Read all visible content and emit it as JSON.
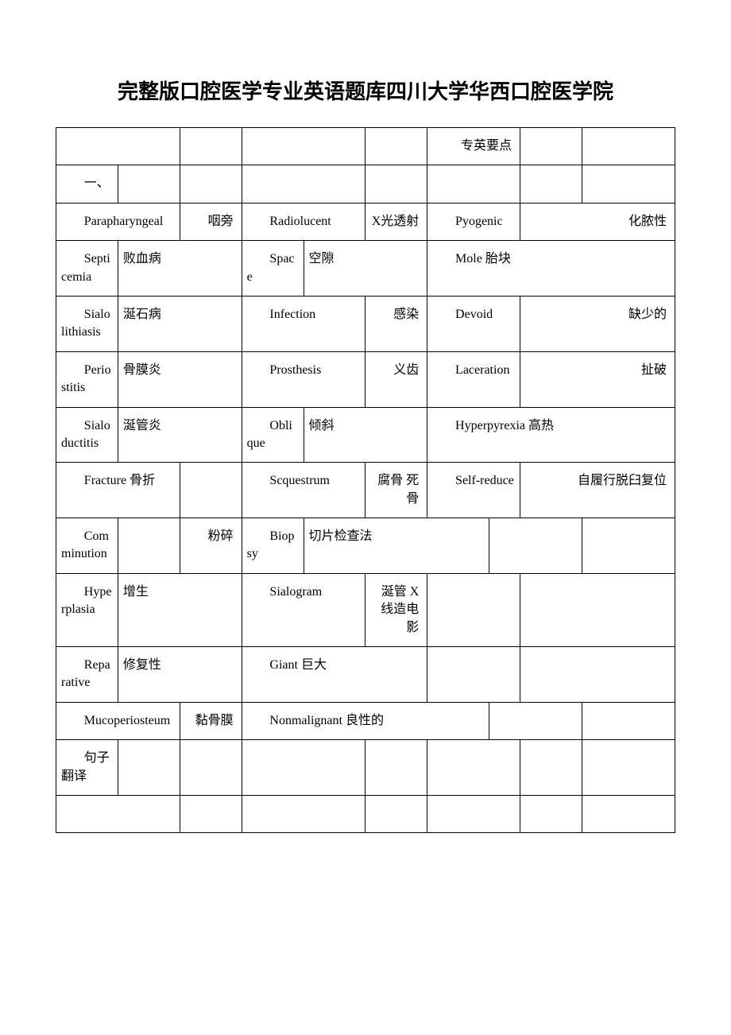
{
  "title": "完整版口腔医学专业英语题库四川大学华西口腔医学院",
  "header_note": "专英要点",
  "section_marker": "一、",
  "rows": [
    {
      "type": "header"
    },
    {
      "type": "section"
    },
    {
      "type": "r3",
      "c1": "Parapharyngeal",
      "c2": "咽旁",
      "c3": "Radiolucent",
      "c4": "X光透射",
      "c5": "Pyogenic",
      "c6": "化脓性"
    },
    {
      "type": "r3b",
      "c1": "Septicemia",
      "c2": "败血病",
      "c3": "Space",
      "c4": "空隙",
      "c5": "Mole 胎块"
    },
    {
      "type": "r3c",
      "c1": "Sialolithiasis",
      "c2": "涎石病",
      "c3": "Infection",
      "c4": "感染",
      "c5": "Devoid",
      "c6": "缺少的"
    },
    {
      "type": "r3c",
      "c1": "Periostitis",
      "c2": "骨膜炎",
      "c3": "Prosthesis",
      "c4": "义齿",
      "c5": "Laceration",
      "c6": "扯破"
    },
    {
      "type": "r3b",
      "c1": "Sialoductitis",
      "c2": "涎管炎",
      "c3": "Oblique",
      "c4": "倾斜",
      "c5": "Hyperpyrexia 高热"
    },
    {
      "type": "r3d",
      "c1": "Fracture 骨折",
      "c3": "Scquestrum",
      "c4": "腐骨 死骨",
      "c5": "Self-reduce",
      "c6": "自履行脱臼复位"
    },
    {
      "type": "r3e",
      "c1": "Comminution",
      "c2": "粉碎",
      "c3": "Biopsy",
      "c4": "切片检查法"
    },
    {
      "type": "r3f",
      "c1": "Hyperplasia",
      "c2": "增生",
      "c3": "Sialogram",
      "c4": "涎管 X 线造电影"
    },
    {
      "type": "r3g",
      "c1": "Reparative",
      "c2": "修复性",
      "c3": "Giant 巨大"
    },
    {
      "type": "r2",
      "c1": "Mucoperiosteum",
      "c2": "黏骨膜",
      "c3": "Nonmalignant 良性的"
    },
    {
      "type": "sent",
      "c1": "句子翻译"
    },
    {
      "type": "empty"
    }
  ]
}
